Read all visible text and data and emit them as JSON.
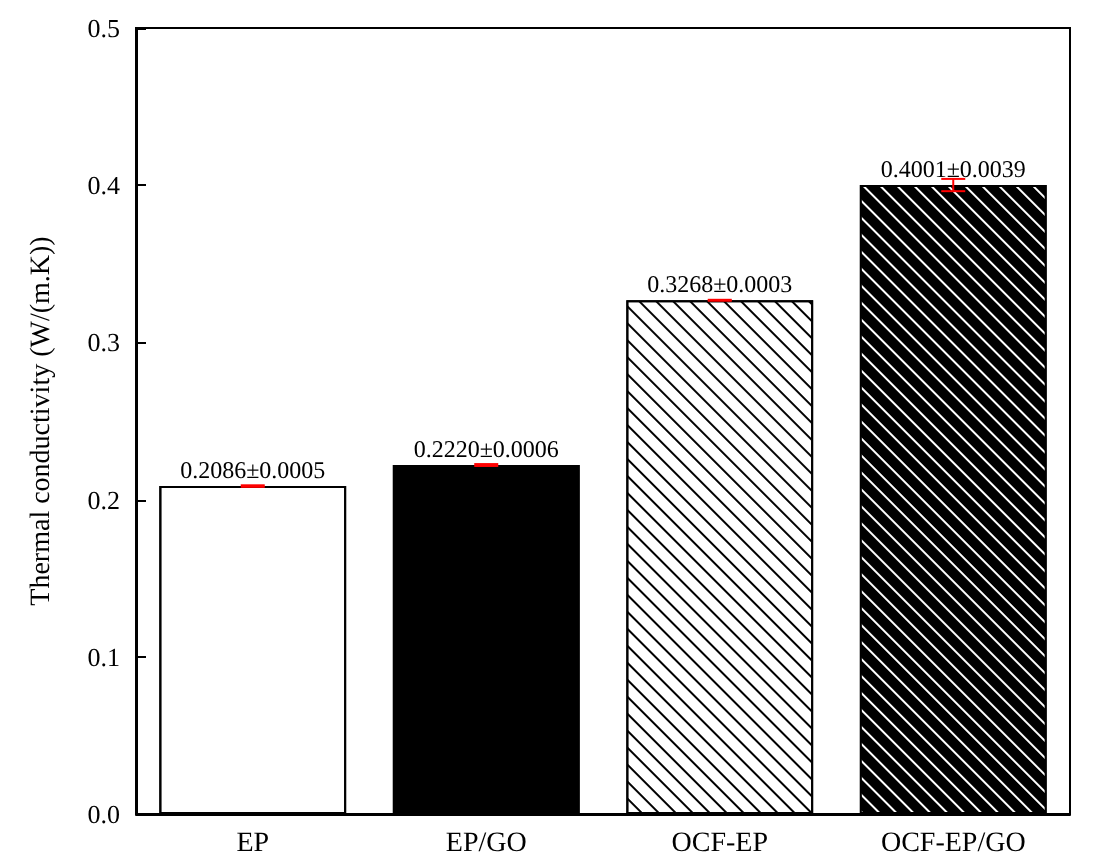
{
  "chart_data": {
    "type": "bar",
    "ylabel": "Thermal conductivity (W/(m.K))",
    "categories": [
      "EP",
      "EP/GO",
      "OCF-EP",
      "OCF-EP/GO"
    ],
    "values": [
      0.2086,
      0.222,
      0.3268,
      0.4001
    ],
    "colors": [
      "#ffffff",
      "#000000",
      "#ffffff",
      "#000000"
    ],
    "errors": [
      0.0005,
      0.0006,
      0.0003,
      0.0039
    ],
    "value_labels": [
      "0.2086±0.0005",
      "0.2220±0.0006",
      "0.3268±0.0003",
      "0.4001±0.0039"
    ],
    "ylim": [
      0,
      0.5
    ],
    "yticks": [
      {
        "value": 0,
        "label": "0.0"
      },
      {
        "value": 0.1,
        "label": "0.1"
      },
      {
        "value": 0.2,
        "label": "0.2"
      },
      {
        "value": 0.3,
        "label": "0.3"
      },
      {
        "value": 0.4,
        "label": "0.4"
      },
      {
        "value": 0.5,
        "label": "0.5"
      }
    ],
    "grid": false
  }
}
